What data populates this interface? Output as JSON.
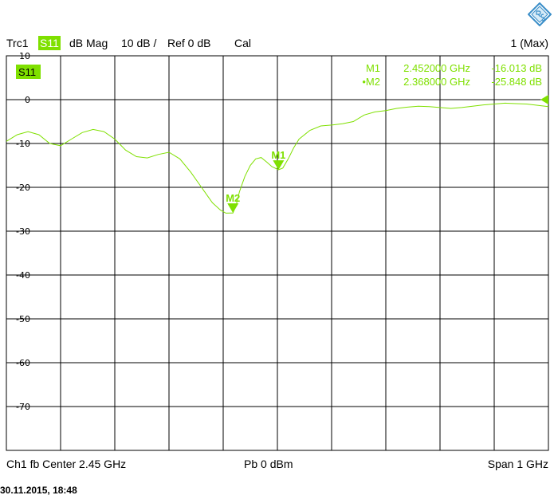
{
  "colors": {
    "trace": "#7fe000",
    "grid": "#000000",
    "background": "#ffffff"
  },
  "header": {
    "trace": "Trc1",
    "parameter": "S11",
    "format": "dB Mag",
    "scale": "10 dB /",
    "ref": "Ref 0 dB",
    "cal": "Cal",
    "count": "1 (Max)"
  },
  "trace_badge": "S11",
  "markers": [
    {
      "name": "M1",
      "prefix": "",
      "freq": "2.452000 GHz",
      "value": "-16.013 dB"
    },
    {
      "name": "M2",
      "prefix": "•",
      "freq": "2.368000 GHz",
      "value": "-25.848 dB"
    }
  ],
  "footer": {
    "channel": "Ch1  fb  Center  2.45 GHz",
    "power": "Pb   0 dBm",
    "span": "Span  1 GHz"
  },
  "timestamp": "30.11.2015, 18:48",
  "icons": {
    "logo": "rohde-schwarz-logo-icon",
    "ref_marker": "reference-level-arrow-icon"
  },
  "chart_data": {
    "type": "line",
    "title": "",
    "xlabel": "",
    "ylabel": "",
    "xlim": [
      1.95,
      2.95
    ],
    "ylim": [
      -80,
      10
    ],
    "y_ticks": [
      10,
      0,
      -10,
      -20,
      -30,
      -40,
      -50,
      -60,
      -70
    ],
    "y_tick_labels": [
      "10",
      "0",
      "-10",
      "-20",
      "-30",
      "-40",
      "-50",
      "-60",
      "-70"
    ],
    "grid": true,
    "reference_level": 0,
    "series": [
      {
        "x": [
          1.95,
          1.97,
          1.99,
          2.01,
          2.03,
          2.05,
          2.07,
          2.09,
          2.11,
          2.13,
          2.15,
          2.17,
          2.19,
          2.21,
          2.23,
          2.25,
          2.27,
          2.29,
          2.31,
          2.33,
          2.345,
          2.355,
          2.362,
          2.368,
          2.374,
          2.38,
          2.39,
          2.4,
          2.41,
          2.42,
          2.43,
          2.44,
          2.452,
          2.46,
          2.47,
          2.48,
          2.49,
          2.51,
          2.53,
          2.55,
          2.57,
          2.59,
          2.61,
          2.63,
          2.65,
          2.67,
          2.69,
          2.71,
          2.73,
          2.75,
          2.77,
          2.79,
          2.81,
          2.83,
          2.85,
          2.87,
          2.89,
          2.91,
          2.93,
          2.95
        ],
        "y": [
          -9.5,
          -8,
          -7.3,
          -8,
          -10,
          -10.5,
          -9,
          -7.5,
          -6.8,
          -7.3,
          -9,
          -11.5,
          -13,
          -13.3,
          -12.5,
          -12,
          -13.5,
          -16.5,
          -20,
          -23.5,
          -25.2,
          -25.9,
          -25.85,
          -25.85,
          -24,
          -21,
          -17.5,
          -15,
          -13.5,
          -13.2,
          -14.2,
          -15.3,
          -16.0,
          -15.6,
          -13.5,
          -11,
          -9,
          -7,
          -6,
          -5.8,
          -5.5,
          -5,
          -3.5,
          -2.8,
          -2.5,
          -2,
          -1.7,
          -1.5,
          -1.6,
          -1.8,
          -2,
          -1.8,
          -1.5,
          -1.2,
          -1,
          -0.8,
          -0.9,
          -1,
          -1.3,
          -1.6
        ]
      }
    ],
    "markers": [
      {
        "name": "M1",
        "x": 2.452,
        "y": -16.013
      },
      {
        "name": "M2",
        "x": 2.368,
        "y": -25.848
      }
    ]
  }
}
